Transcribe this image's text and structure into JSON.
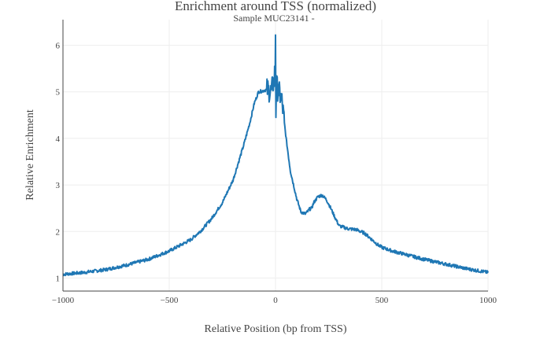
{
  "chart_data": {
    "type": "line",
    "title": "Enrichment around TSS (normalized)",
    "subtitle": "Sample MUC23141 -",
    "xlabel": "Relative Position (bp from TSS)",
    "ylabel": "Relative Enrichment",
    "xlim": [
      -1000,
      1000
    ],
    "ylim": [
      0.72,
      6.55
    ],
    "x_ticks": [
      -1000,
      -500,
      0,
      500,
      1000
    ],
    "x_tick_labels": [
      "−1000",
      "−500",
      "0",
      "500",
      "1000"
    ],
    "y_ticks": [
      1,
      2,
      3,
      4,
      5,
      6
    ],
    "y_tick_labels": [
      "1",
      "2",
      "3",
      "4",
      "5",
      "6"
    ],
    "grid": true,
    "line_color": "#1f77b4",
    "series": [
      {
        "x": [
          -1000,
          -900,
          -800,
          -700,
          -600,
          -500,
          -400,
          -350,
          -300,
          -250,
          -200,
          -150,
          -120,
          -100,
          -80,
          -60,
          -40,
          -20,
          -10,
          0,
          10,
          20,
          30,
          50,
          70,
          100,
          120,
          140,
          150,
          160,
          170,
          180,
          200,
          220,
          240,
          260,
          280,
          300,
          340,
          360,
          380,
          400,
          420,
          440,
          460,
          480,
          500,
          550,
          600,
          650,
          700,
          750,
          800,
          850,
          900,
          950,
          1000
        ],
        "y": [
          1.08,
          1.12,
          1.18,
          1.28,
          1.4,
          1.58,
          1.82,
          2.02,
          2.28,
          2.62,
          3.1,
          3.85,
          4.35,
          4.75,
          5.0,
          5.02,
          5.05,
          5.0,
          5.2,
          5.25,
          5.05,
          4.95,
          4.8,
          4.0,
          3.3,
          2.7,
          2.42,
          2.38,
          2.42,
          2.48,
          2.5,
          2.62,
          2.75,
          2.78,
          2.68,
          2.5,
          2.3,
          2.12,
          2.06,
          2.05,
          2.04,
          2.0,
          1.96,
          1.88,
          1.8,
          1.72,
          1.66,
          1.58,
          1.52,
          1.46,
          1.4,
          1.35,
          1.3,
          1.25,
          1.2,
          1.16,
          1.12
        ]
      }
    ]
  }
}
